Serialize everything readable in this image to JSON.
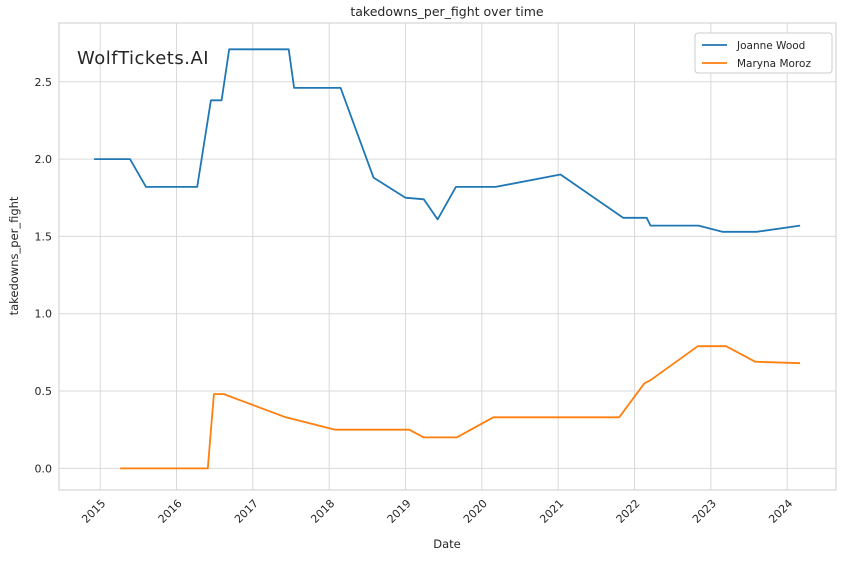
{
  "watermark": "WolfTickets.AI",
  "colors": {
    "background": "#ffffff",
    "grid": "#d9d9d9",
    "spine": "#cccccc",
    "text": "#262626",
    "watermark": "#d6d6d6",
    "joanne_wood_line": "#1f77b4",
    "maryna_moroz_line": "#ff7f0e"
  },
  "legend": {
    "position": "upper right",
    "entries": [
      "Joanne Wood",
      "Maryna Moroz"
    ]
  },
  "chart_data": {
    "type": "line",
    "title": "takedowns_per_fight over time",
    "xlabel": "Date",
    "ylabel": "takedowns_per_fight",
    "x_ticks": [
      2015,
      2016,
      2017,
      2018,
      2019,
      2020,
      2021,
      2022,
      2023,
      2024
    ],
    "y_ticks": [
      0.0,
      0.5,
      1.0,
      1.5,
      2.0,
      2.5
    ],
    "xlim": [
      2014.46,
      2024.64
    ],
    "ylim": [
      -0.14,
      2.88
    ],
    "grid": true,
    "legend_position": "upper right",
    "series": [
      {
        "name": "Joanne Wood",
        "color": "#1f77b4",
        "points": [
          [
            2014.92,
            2.0
          ],
          [
            2015.39,
            2.0
          ],
          [
            2015.6,
            1.82
          ],
          [
            2016.27,
            1.82
          ],
          [
            2016.45,
            2.38
          ],
          [
            2016.59,
            2.38
          ],
          [
            2016.69,
            2.71
          ],
          [
            2017.47,
            2.71
          ],
          [
            2017.54,
            2.46
          ],
          [
            2018.15,
            2.46
          ],
          [
            2018.58,
            1.88
          ],
          [
            2019.0,
            1.75
          ],
          [
            2019.24,
            1.74
          ],
          [
            2019.42,
            1.61
          ],
          [
            2019.66,
            1.82
          ],
          [
            2020.18,
            1.82
          ],
          [
            2021.03,
            1.9
          ],
          [
            2021.85,
            1.62
          ],
          [
            2022.16,
            1.62
          ],
          [
            2022.21,
            1.57
          ],
          [
            2022.84,
            1.57
          ],
          [
            2023.15,
            1.53
          ],
          [
            2023.6,
            1.53
          ],
          [
            2024.17,
            1.57
          ]
        ]
      },
      {
        "name": "Maryna Moroz",
        "color": "#ff7f0e",
        "points": [
          [
            2015.26,
            0.0
          ],
          [
            2016.41,
            0.0
          ],
          [
            2016.49,
            0.48
          ],
          [
            2016.62,
            0.48
          ],
          [
            2017.43,
            0.33
          ],
          [
            2018.08,
            0.25
          ],
          [
            2019.05,
            0.25
          ],
          [
            2019.24,
            0.2
          ],
          [
            2019.67,
            0.2
          ],
          [
            2020.15,
            0.33
          ],
          [
            2021.8,
            0.33
          ],
          [
            2022.13,
            0.55
          ],
          [
            2022.21,
            0.57
          ],
          [
            2022.83,
            0.79
          ],
          [
            2023.2,
            0.79
          ],
          [
            2023.58,
            0.69
          ],
          [
            2024.17,
            0.68
          ]
        ]
      }
    ]
  }
}
